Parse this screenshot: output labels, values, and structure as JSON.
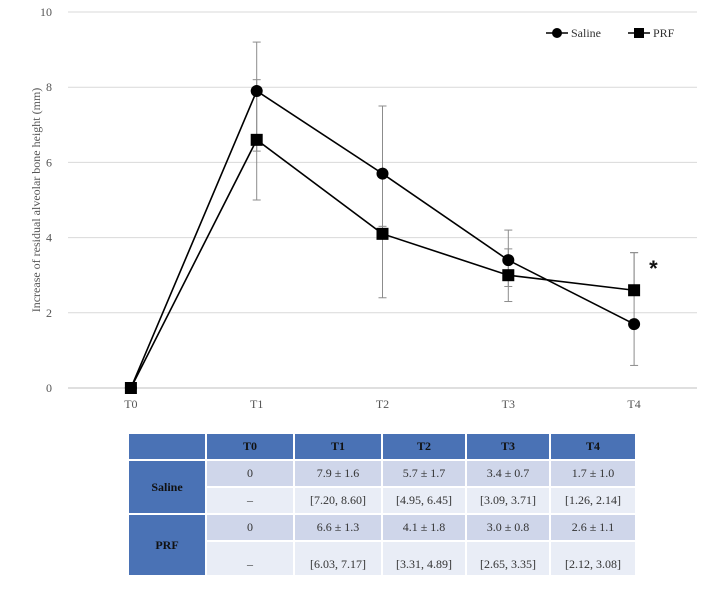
{
  "chart_data": {
    "type": "line",
    "title": "",
    "xlabel": "",
    "ylabel": "Increase of residual alveolar bone height (mm)",
    "categories": [
      "T0",
      "T1",
      "T2",
      "T3",
      "T4"
    ],
    "ylim": [
      0,
      10
    ],
    "yticks": [
      "0",
      "2",
      "4",
      "6",
      "8",
      "10"
    ],
    "grid": true,
    "legend_position": "top-right",
    "series": [
      {
        "name": "Saline",
        "marker": "circle",
        "values": [
          0,
          7.9,
          5.7,
          3.4,
          1.7
        ],
        "err_low": [
          0,
          1.6,
          1.7,
          0.7,
          1.1
        ],
        "err_high": [
          0,
          1.3,
          1.8,
          0.8,
          1.9
        ]
      },
      {
        "name": "PRF",
        "marker": "square",
        "values": [
          0,
          6.6,
          4.1,
          3.0,
          2.6
        ],
        "err_low": [
          0,
          1.6,
          1.7,
          0.7,
          0.0
        ],
        "err_high": [
          0,
          1.6,
          0.2,
          0.7,
          1.0
        ]
      }
    ],
    "annotations": [
      {
        "text": "*",
        "x": "T4",
        "y": 3.3
      }
    ],
    "colors": {
      "line": "#000000",
      "grid": "#d9d9d9",
      "errorbar": "#8c8c8c",
      "axis_text": "#555555"
    }
  },
  "table": {
    "headers": [
      "",
      "T0",
      "T1",
      "T2",
      "T3",
      "T4"
    ],
    "groups": [
      {
        "name": "Saline",
        "rows": [
          [
            "0",
            "7.9 ± 1.6",
            "5.7 ± 1.7",
            "3.4 ± 0.7",
            "1.7 ± 1.0"
          ],
          [
            "–",
            "[7.20, 8.60]",
            "[4.95, 6.45]",
            "[3.09, 3.71]",
            "[1.26, 2.14]"
          ]
        ]
      },
      {
        "name": "PRF",
        "rows": [
          [
            "0",
            "6.6 ± 1.3",
            "4.1 ± 1.8",
            "3.0 ± 0.8",
            "2.6 ± 1.1"
          ],
          [
            "–",
            "[6.03, 7.17]",
            "[3.31, 4.89]",
            "[2.65, 3.35]",
            "[2.12, 3.08]"
          ]
        ]
      }
    ],
    "colors": {
      "header": "#4a72b5",
      "row_dark": "#cfd6ea",
      "row_light": "#e9edf6"
    }
  }
}
